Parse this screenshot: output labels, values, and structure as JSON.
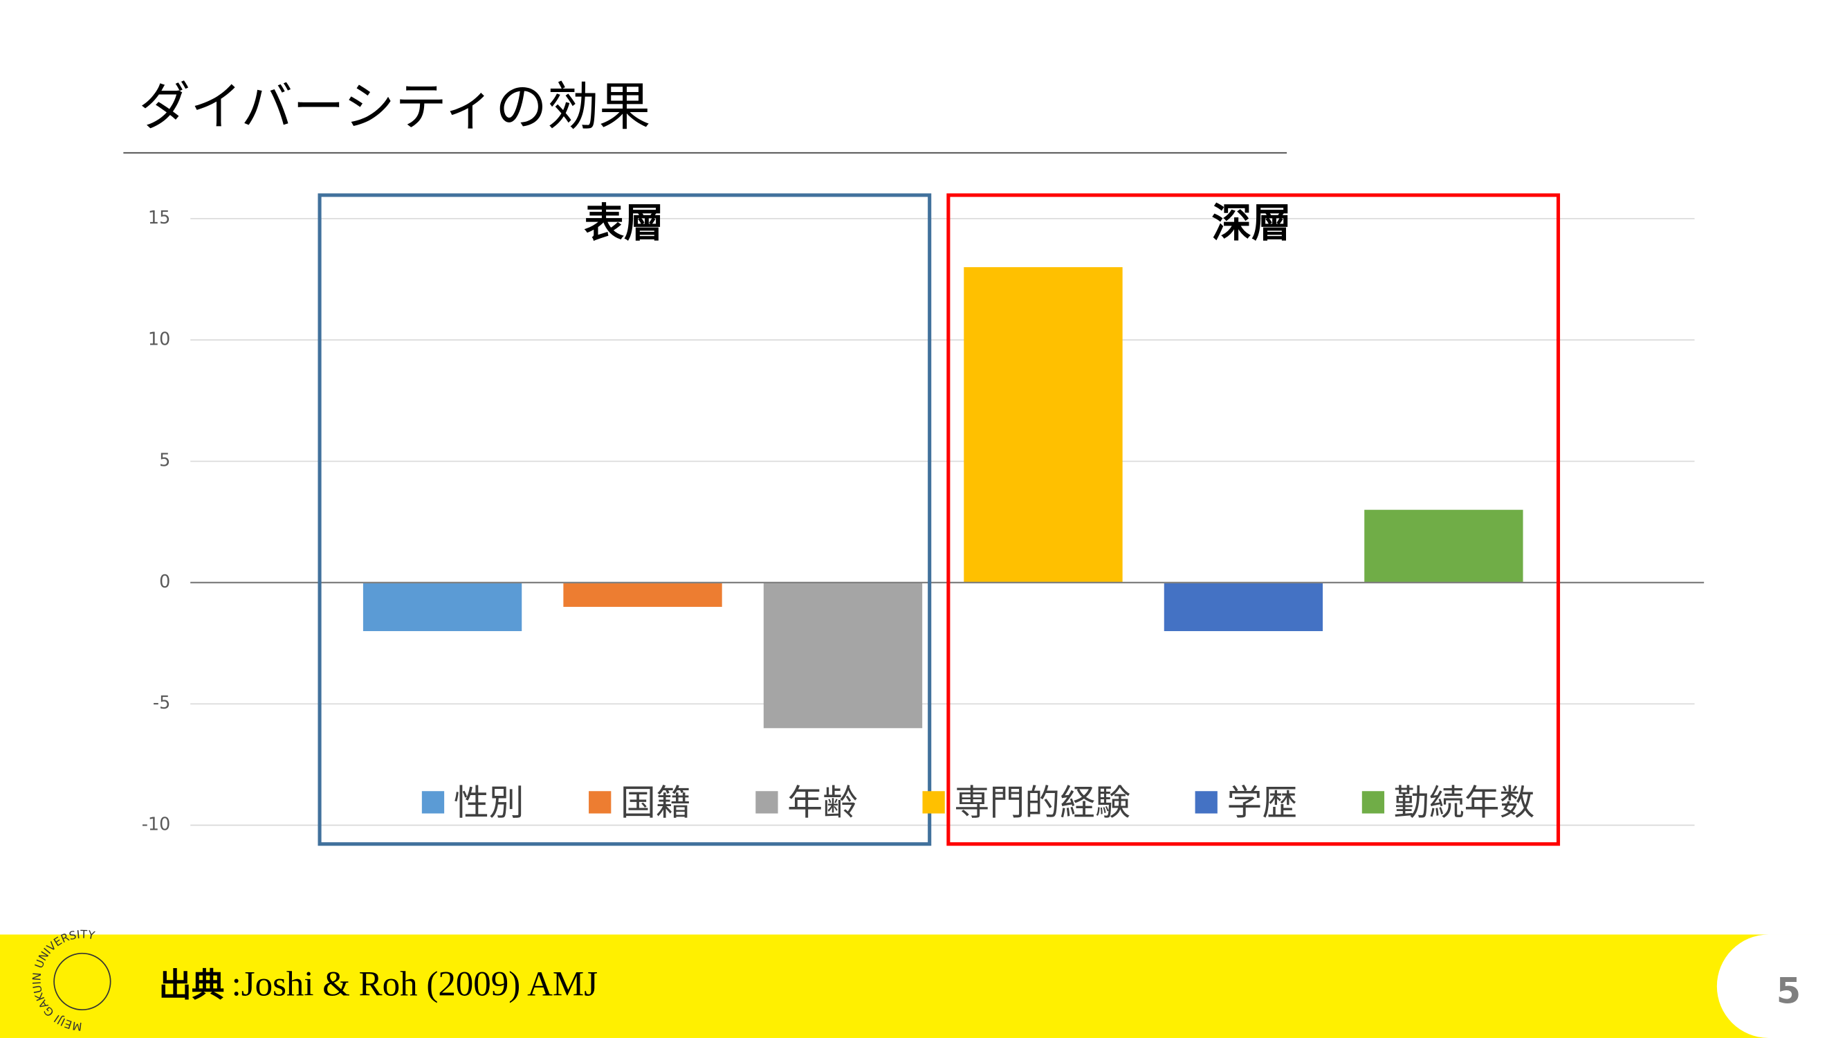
{
  "chart_data": {
    "type": "bar",
    "title": "ダイバーシティの効果",
    "annotations": [
      "表層",
      "深層"
    ],
    "series": [
      {
        "name": "性別",
        "color": "#5b9bd5",
        "values": [
          -2
        ]
      },
      {
        "name": "国籍",
        "color": "#ed7d31",
        "values": [
          -1
        ]
      },
      {
        "name": "年齢",
        "color": "#a5a5a5",
        "values": [
          -6
        ]
      },
      {
        "name": "専門的経験",
        "color": "#ffc000",
        "values": [
          13
        ]
      },
      {
        "name": "学歴",
        "color": "#4472c4",
        "values": [
          -2
        ]
      },
      {
        "name": "勤続年数",
        "color": "#70ad47",
        "values": [
          3
        ]
      }
    ],
    "ylim": [
      -10,
      15
    ],
    "yticks": [
      -10,
      -5,
      0,
      5,
      10,
      15
    ],
    "grid": true
  },
  "footer": {
    "source_label": "出典",
    "source": ":Joshi & Roh (2009) AMJ",
    "logo_text": "MEIJI GAKUIN UNIVERSITY",
    "page_number": "5"
  }
}
